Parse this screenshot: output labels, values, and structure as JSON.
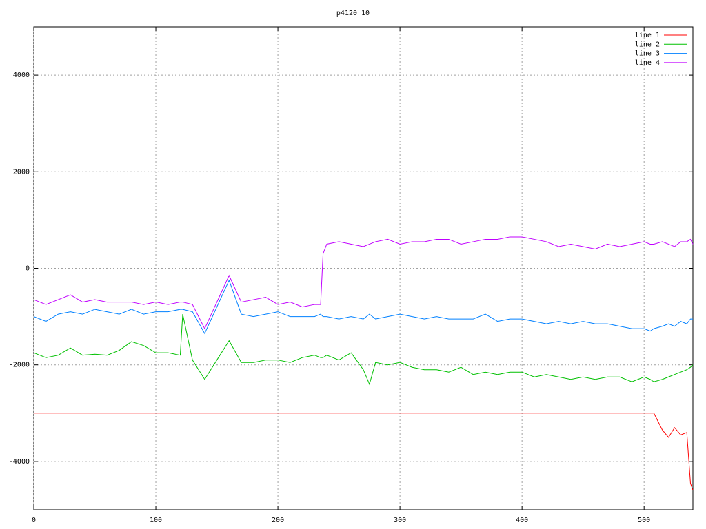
{
  "chart_data": {
    "type": "line",
    "title": "p4120_10",
    "x": [
      0,
      10,
      20,
      30,
      40,
      50,
      60,
      70,
      80,
      90,
      100,
      110,
      120,
      122,
      130,
      140,
      150,
      160,
      170,
      180,
      190,
      200,
      210,
      220,
      230,
      235,
      237,
      240,
      250,
      260,
      270,
      275,
      280,
      290,
      300,
      310,
      320,
      330,
      340,
      350,
      360,
      370,
      380,
      390,
      400,
      410,
      420,
      430,
      440,
      450,
      460,
      470,
      480,
      490,
      500,
      505,
      508,
      515,
      520,
      525,
      530,
      535,
      538,
      540
    ],
    "series": [
      {
        "name": "line 1",
        "color": "#ff0000",
        "values": [
          -3000,
          -3000,
          -3000,
          -3000,
          -3000,
          -3000,
          -3000,
          -3000,
          -3000,
          -3000,
          -3000,
          -3000,
          -3000,
          -3000,
          -3000,
          -3000,
          -3000,
          -3000,
          -3000,
          -3000,
          -3000,
          -3000,
          -3000,
          -3000,
          -3000,
          -3000,
          -3000,
          -3000,
          -3000,
          -3000,
          -3000,
          -3000,
          -3000,
          -3000,
          -3000,
          -3000,
          -3000,
          -3000,
          -3000,
          -3000,
          -3000,
          -3000,
          -3000,
          -3000,
          -3000,
          -3000,
          -3000,
          -3000,
          -3000,
          -3000,
          -3000,
          -3000,
          -3000,
          -3000,
          -3000,
          -3000,
          -3000,
          -3350,
          -3500,
          -3300,
          -3450,
          -3400,
          -4450,
          -4600
        ]
      },
      {
        "name": "line 2",
        "color": "#00c000",
        "values": [
          -1750,
          -1850,
          -1800,
          -1650,
          -1800,
          -1780,
          -1800,
          -1700,
          -1520,
          -1600,
          -1750,
          -1750,
          -1800,
          -950,
          -1900,
          -2300,
          -1900,
          -1500,
          -1950,
          -1950,
          -1900,
          -1900,
          -1950,
          -1850,
          -1800,
          -1850,
          -1850,
          -1800,
          -1900,
          -1750,
          -2100,
          -2400,
          -1950,
          -2000,
          -1950,
          -2050,
          -2100,
          -2100,
          -2150,
          -2050,
          -2200,
          -2150,
          -2200,
          -2150,
          -2150,
          -2250,
          -2200,
          -2250,
          -2300,
          -2250,
          -2300,
          -2250,
          -2250,
          -2350,
          -2250,
          -2300,
          -2350,
          -2300,
          -2250,
          -2200,
          -2150,
          -2100,
          -2050,
          -2000
        ]
      },
      {
        "name": "line 3",
        "color": "#0080ff",
        "values": [
          -1000,
          -1100,
          -950,
          -900,
          -950,
          -850,
          -900,
          -950,
          -850,
          -950,
          -900,
          -900,
          -850,
          -850,
          -900,
          -1350,
          -800,
          -250,
          -950,
          -1000,
          -950,
          -900,
          -1000,
          -1000,
          -1000,
          -950,
          -1000,
          -1000,
          -1050,
          -1000,
          -1050,
          -950,
          -1050,
          -1000,
          -950,
          -1000,
          -1050,
          -1000,
          -1050,
          -1050,
          -1050,
          -950,
          -1100,
          -1050,
          -1050,
          -1100,
          -1150,
          -1100,
          -1150,
          -1100,
          -1150,
          -1150,
          -1200,
          -1250,
          -1250,
          -1300,
          -1250,
          -1200,
          -1150,
          -1200,
          -1100,
          -1150,
          -1050,
          -1050
        ]
      },
      {
        "name": "line 4",
        "color": "#c000ff",
        "values": [
          -650,
          -750,
          -650,
          -550,
          -700,
          -650,
          -700,
          -700,
          -700,
          -750,
          -700,
          -750,
          -700,
          -700,
          -750,
          -1250,
          -700,
          -150,
          -700,
          -650,
          -600,
          -750,
          -700,
          -800,
          -750,
          -750,
          300,
          500,
          550,
          500,
          450,
          500,
          550,
          600,
          500,
          550,
          550,
          600,
          600,
          500,
          550,
          600,
          600,
          650,
          650,
          600,
          550,
          450,
          500,
          450,
          400,
          500,
          450,
          500,
          550,
          500,
          500,
          550,
          500,
          450,
          550,
          550,
          600,
          500
        ]
      }
    ],
    "xlim": [
      0,
      540
    ],
    "xticks": [
      0,
      100,
      200,
      300,
      400,
      500
    ],
    "ylim": [
      -5000,
      5000
    ],
    "yticks": [
      -4000,
      -2000,
      0,
      2000,
      4000
    ],
    "grid": true,
    "legend": "top-right"
  }
}
